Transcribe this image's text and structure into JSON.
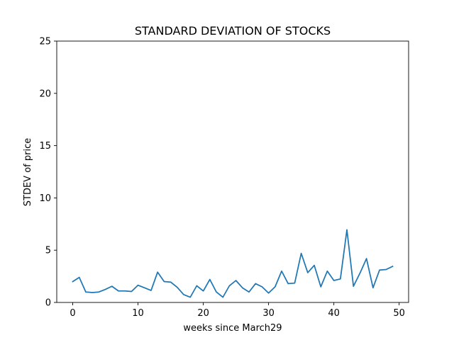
{
  "chart_data": {
    "type": "line",
    "title": "STANDARD DEVIATION OF STOCKS",
    "xlabel": "weeks since March29",
    "ylabel": "STDEV of price",
    "xlim": [
      -2.45,
      51.45
    ],
    "ylim": [
      0,
      25
    ],
    "x_ticks": [
      0,
      10,
      20,
      30,
      40,
      50
    ],
    "y_ticks": [
      0,
      5,
      10,
      15,
      20,
      25
    ],
    "grid": false,
    "series": [
      {
        "color": "#1f77b4",
        "x": [
          0,
          1,
          2,
          3,
          4,
          5,
          6,
          7,
          8,
          9,
          10,
          11,
          12,
          13,
          14,
          15,
          16,
          17,
          18,
          19,
          20,
          21,
          22,
          23,
          24,
          25,
          26,
          27,
          28,
          29,
          30,
          31,
          32,
          33,
          34,
          35,
          36,
          37,
          38,
          39,
          40,
          41,
          42,
          43,
          44,
          45,
          46,
          47,
          48,
          49
        ],
        "y": [
          2.0,
          2.4,
          1.0,
          0.95,
          1.0,
          1.25,
          1.55,
          1.1,
          1.1,
          1.05,
          1.65,
          1.4,
          1.15,
          2.9,
          2.0,
          1.95,
          1.45,
          0.75,
          0.5,
          1.6,
          1.1,
          2.2,
          1.0,
          0.5,
          1.6,
          2.1,
          1.4,
          1.0,
          1.8,
          1.5,
          0.9,
          1.5,
          3.0,
          1.8,
          1.85,
          4.7,
          2.85,
          3.55,
          1.5,
          3.0,
          2.1,
          2.25,
          6.95,
          1.55,
          2.8,
          4.2,
          1.4,
          3.1,
          3.15,
          3.45
        ]
      }
    ]
  }
}
